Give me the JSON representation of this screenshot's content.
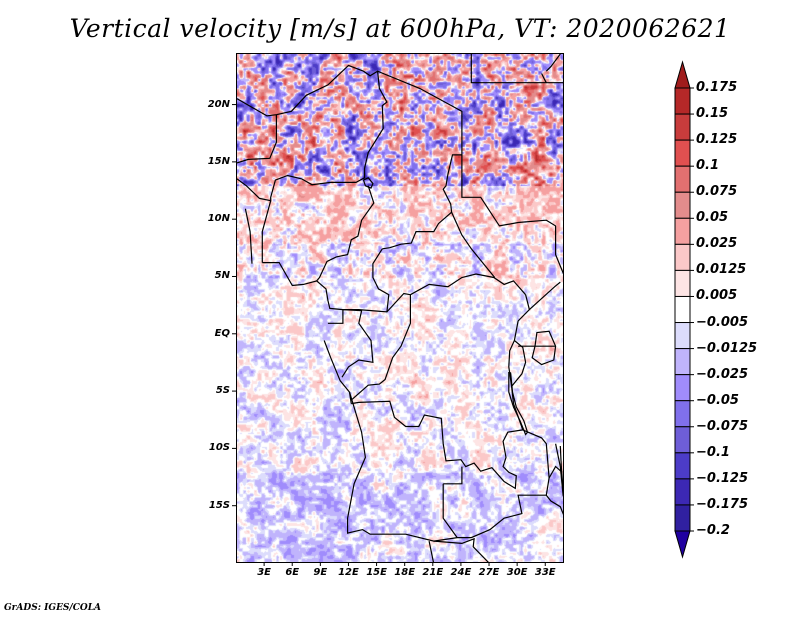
{
  "title": "Vertical velocity [m/s] at 600hPa, VT: 2020062621",
  "credit": "GrADS: IGES/COLA",
  "map": {
    "variable": "Vertical velocity",
    "units": "m/s",
    "level": "600hPa",
    "valid_time": "2020062621",
    "lon_range_deg": [
      0,
      35
    ],
    "lat_range_deg": [
      -20,
      24.5
    ],
    "lat_ticks": [
      {
        "value": 20,
        "label": "20N"
      },
      {
        "value": 15,
        "label": "15N"
      },
      {
        "value": 10,
        "label": "10N"
      },
      {
        "value": 5,
        "label": "5N"
      },
      {
        "value": 0,
        "label": "EQ"
      },
      {
        "value": -5,
        "label": "5S"
      },
      {
        "value": -10,
        "label": "10S"
      },
      {
        "value": -15,
        "label": "15S"
      }
    ],
    "lon_ticks": [
      {
        "value": 3,
        "label": "3E"
      },
      {
        "value": 6,
        "label": "6E"
      },
      {
        "value": 9,
        "label": "9E"
      },
      {
        "value": 12,
        "label": "12E"
      },
      {
        "value": 15,
        "label": "15E"
      },
      {
        "value": 18,
        "label": "18E"
      },
      {
        "value": 21,
        "label": "21E"
      },
      {
        "value": 24,
        "label": "24E"
      },
      {
        "value": 27,
        "label": "27E"
      },
      {
        "value": 30,
        "label": "30E"
      },
      {
        "value": 33,
        "label": "33E"
      }
    ],
    "features": {
      "strong_positive_regions": [
        "Sahara north (Algeria/Niger)",
        "Chad north",
        "Sahel band ~14-16N"
      ],
      "strong_negative_regions": [
        "Niger/Algeria ~17-22N",
        "Sahel band ~15N"
      ],
      "mixed_weak_regions": [
        "Gulf of Guinea",
        "Congo Basin",
        "Angola",
        "Zambia"
      ]
    }
  },
  "colorbar": {
    "labels": [
      "0.175",
      "0.15",
      "0.125",
      "0.1",
      "0.075",
      "0.05",
      "0.025",
      "0.0125",
      "0.005",
      "-0.005",
      "-0.0125",
      "-0.025",
      "-0.05",
      "-0.075",
      "-0.1",
      "-0.125",
      "-0.175",
      "-0.2"
    ],
    "colors": [
      "#a01c1c",
      "#b52828",
      "#c83c3c",
      "#e05050",
      "#e27070",
      "#e38c8c",
      "#f5a0a0",
      "#fbc8c8",
      "#fde4e4",
      "#ffffff",
      "#dcdcfc",
      "#c0b4fc",
      "#a08cfc",
      "#8070ec",
      "#6e5ed8",
      "#4c3cc8",
      "#3c28b4",
      "#3020a0",
      "#2000a0"
    ],
    "extend": "both"
  }
}
